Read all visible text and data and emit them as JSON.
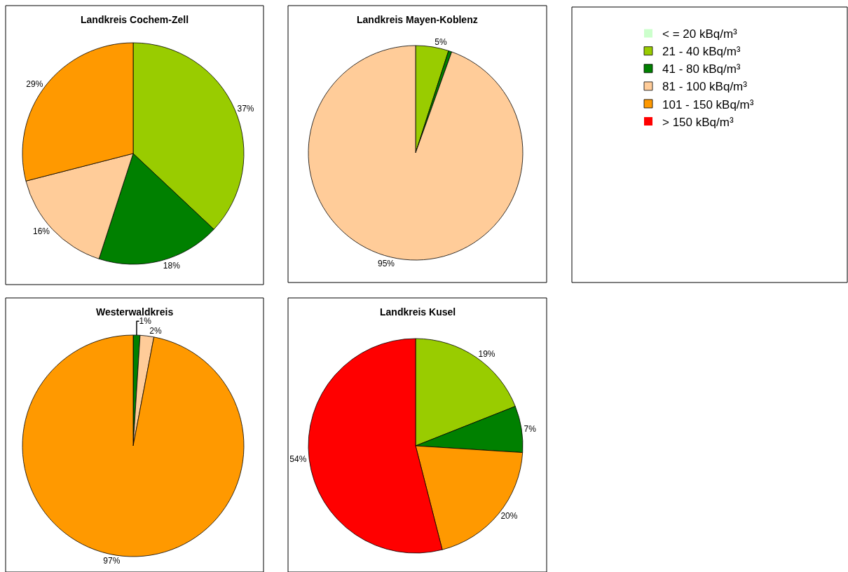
{
  "chart_data": [
    {
      "type": "pie",
      "title": "Landkreis Cochem-Zell",
      "legend": "right",
      "categories": [
        "< = 20 kBq/m³",
        "21 - 40 kBq/m³",
        "41 - 80 kBq/m³",
        "81 - 100 kBq/m³",
        "101 - 150 kBq/m³",
        "> 150 kBq/m³"
      ],
      "values": [
        0,
        37,
        18,
        16,
        29,
        0
      ],
      "value_labels": [
        null,
        "37%",
        "18%",
        "16%",
        "29%",
        null
      ],
      "colors": [
        "#ccffcc",
        "#99cc00",
        "#008000",
        "#ffcc99",
        "#ff9900",
        "#ff0000"
      ]
    },
    {
      "type": "pie",
      "title": "Landkreis Mayen-Koblenz",
      "categories": [
        null,
        null,
        null
      ],
      "values": [
        5,
        0.5,
        95
      ],
      "value_labels": [
        "5%",
        null,
        "95%"
      ],
      "colors": [
        "#99cc00",
        "#008000",
        "#ffcc99"
      ]
    },
    {
      "type": "pie",
      "title": "Westerwaldkreis",
      "categories": [
        null,
        null,
        null
      ],
      "values": [
        1,
        2,
        97
      ],
      "value_labels": [
        "1%",
        "2%",
        "97%"
      ],
      "colors": [
        "#008000",
        "#ffcc99",
        "#ff9900"
      ]
    },
    {
      "type": "pie",
      "title": "Landkreis Kusel",
      "categories": [
        null,
        null,
        null,
        null
      ],
      "values": [
        19,
        7,
        20,
        54
      ],
      "value_labels": [
        "19%",
        "7%",
        "20%",
        "54%"
      ],
      "colors": [
        "#99cc00",
        "#008000",
        "#ff9900",
        "#ff0000"
      ]
    }
  ]
}
